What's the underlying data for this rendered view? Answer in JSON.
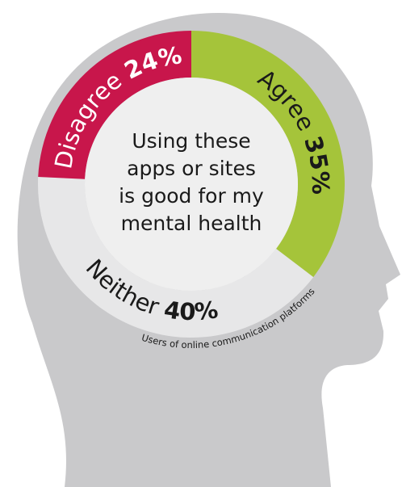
{
  "chart_data": {
    "type": "donut",
    "categories": [
      "Agree",
      "Neither",
      "Disagree"
    ],
    "values": [
      35,
      40,
      24
    ],
    "value_labels": [
      "35%",
      "40%",
      "24%"
    ],
    "colors": [
      "#a5c43a",
      "#e7e7e8",
      "#c8164b"
    ],
    "label_colors": [
      "#1a1a1a",
      "#1a1a1a",
      "#ffffff"
    ],
    "center_text": [
      "Using these",
      "apps or sites",
      "is good for my",
      "mental health"
    ],
    "caption": "Users of online communication platforms"
  }
}
